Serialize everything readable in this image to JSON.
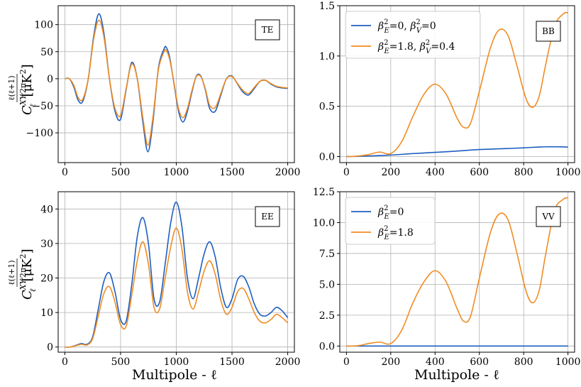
{
  "colors": {
    "series_a": "#1f5fbf",
    "series_b": "#f08c23",
    "grid": "#b0b0b0"
  },
  "ylabel": {
    "frac_num": "ℓ(ℓ+1)",
    "frac_den": "2π",
    "c_symbol": "C",
    "c_super": "XY",
    "c_sub": "ℓ",
    "units": "[μK",
    "units_sq": "2",
    "units_close": "]"
  },
  "xlabel": "Multipole - ℓ",
  "chart_data": [
    {
      "id": "TE",
      "type": "line",
      "tag": "TE",
      "xlim": [
        -60,
        2060
      ],
      "ylim": [
        -155,
        135
      ],
      "xticks": [
        0,
        500,
        1000,
        1500,
        2000
      ],
      "yticks": [
        100,
        50,
        0,
        -50,
        -100
      ],
      "ytick_labels": [
        "100",
        "50",
        "0",
        "−50",
        "−100"
      ],
      "grid": true,
      "series": [
        {
          "name": "blue",
          "x": [
            0,
            40,
            80,
            120,
            160,
            210,
            260,
            305,
            350,
            400,
            450,
            500,
            550,
            600,
            650,
            700,
            745,
            790,
            840,
            890,
            910,
            940,
            980,
            1020,
            1060,
            1100,
            1140,
            1180,
            1220,
            1260,
            1300,
            1350,
            1400,
            1450,
            1500,
            1550,
            1600,
            1650,
            1700,
            1750,
            1800,
            1850,
            1900,
            1950,
            2000
          ],
          "y": [
            0,
            0,
            -15,
            -40,
            -42,
            0,
            80,
            120,
            85,
            0,
            -60,
            -75,
            -20,
            30,
            0,
            -80,
            -135,
            -80,
            20,
            55,
            58,
            40,
            -10,
            -60,
            -80,
            -60,
            -25,
            5,
            5,
            -20,
            -55,
            -60,
            -30,
            0,
            5,
            -10,
            -25,
            -30,
            -18,
            -5,
            -3,
            -10,
            -15,
            -17,
            -18
          ]
        },
        {
          "name": "orange",
          "x": [
            0,
            40,
            80,
            120,
            160,
            210,
            260,
            305,
            350,
            400,
            450,
            500,
            550,
            600,
            650,
            700,
            745,
            790,
            840,
            890,
            910,
            940,
            980,
            1020,
            1060,
            1100,
            1140,
            1180,
            1220,
            1260,
            1300,
            1350,
            1400,
            1450,
            1500,
            1550,
            1600,
            1650,
            1700,
            1750,
            1800,
            1850,
            1900,
            1950,
            2000
          ],
          "y": [
            0,
            0,
            -12,
            -35,
            -38,
            0,
            75,
            108,
            78,
            0,
            -55,
            -68,
            -18,
            27,
            0,
            -72,
            -123,
            -72,
            17,
            50,
            52,
            36,
            -8,
            -55,
            -72,
            -55,
            -22,
            4,
            4,
            -18,
            -49,
            -53,
            -27,
            0,
            4,
            -9,
            -22,
            -27,
            -16,
            -5,
            -3,
            -9,
            -14,
            -16,
            -17
          ]
        }
      ]
    },
    {
      "id": "BB",
      "type": "line",
      "tag": "BB",
      "xlim": [
        -30,
        1030
      ],
      "ylim": [
        -0.06,
        1.5
      ],
      "xticks": [
        0,
        200,
        400,
        600,
        800,
        1000
      ],
      "yticks": [
        0.0,
        0.5,
        1.0,
        1.5
      ],
      "ytick_labels": [
        "0.0",
        "0.5",
        "1.0",
        "1.5"
      ],
      "grid": true,
      "legend": {
        "placement": "top-left",
        "entries": [
          {
            "series": 0,
            "label_main": "β",
            "sub": "E",
            "sup": "2",
            "rest": "=0, ",
            "label2": "β",
            "sub2": "V",
            "sup2": "2",
            "rest2": "=0"
          },
          {
            "series": 1,
            "label_main": "β",
            "sub": "E",
            "sup": "2",
            "rest": "=1.8, ",
            "label2": "β",
            "sub2": "V",
            "sup2": "2",
            "rest2": "=0.4"
          }
        ]
      },
      "series": [
        {
          "name": "blue",
          "x": [
            0,
            50,
            100,
            150,
            200,
            250,
            300,
            350,
            400,
            450,
            500,
            550,
            600,
            650,
            700,
            750,
            800,
            850,
            900,
            950,
            1000
          ],
          "y": [
            0,
            0.002,
            0.006,
            0.01,
            0.015,
            0.022,
            0.03,
            0.036,
            0.042,
            0.048,
            0.055,
            0.063,
            0.07,
            0.074,
            0.078,
            0.082,
            0.087,
            0.093,
            0.097,
            0.097,
            0.095
          ]
        },
        {
          "name": "orange",
          "x": [
            0,
            50,
            100,
            150,
            200,
            250,
            300,
            350,
            400,
            450,
            500,
            530,
            560,
            600,
            650,
            690,
            730,
            770,
            810,
            840,
            870,
            900,
            940,
            980,
            1000
          ],
          "y": [
            0,
            0.005,
            0.02,
            0.045,
            0.03,
            0.15,
            0.4,
            0.62,
            0.72,
            0.62,
            0.38,
            0.29,
            0.33,
            0.65,
            1.08,
            1.26,
            1.2,
            0.9,
            0.58,
            0.49,
            0.6,
            0.92,
            1.3,
            1.42,
            1.43
          ]
        }
      ]
    },
    {
      "id": "EE",
      "type": "line",
      "tag": "EE",
      "xlim": [
        -60,
        2060
      ],
      "ylim": [
        -1.5,
        45
      ],
      "xticks": [
        0,
        500,
        1000,
        1500,
        2000
      ],
      "yticks": [
        0,
        10,
        20,
        30,
        40
      ],
      "ytick_labels": [
        "0",
        "10",
        "20",
        "30",
        "40"
      ],
      "grid": true,
      "series": [
        {
          "name": "blue",
          "x": [
            0,
            50,
            100,
            150,
            200,
            250,
            300,
            350,
            400,
            450,
            500,
            550,
            600,
            650,
            700,
            750,
            800,
            850,
            900,
            950,
            1000,
            1050,
            1100,
            1150,
            1200,
            1250,
            1300,
            1350,
            1400,
            1450,
            1500,
            1550,
            1600,
            1650,
            1700,
            1750,
            1800,
            1850,
            1900,
            1950,
            2000
          ],
          "y": [
            0,
            0,
            0.5,
            1,
            0.8,
            3,
            11,
            19,
            21.5,
            16,
            8,
            7.5,
            18,
            32,
            37.5,
            30,
            14,
            13,
            24,
            36,
            42,
            35,
            20,
            14,
            20,
            27,
            30.5,
            26,
            17,
            11.5,
            14,
            19.5,
            20.5,
            17.5,
            12.5,
            9.5,
            9,
            10,
            11.5,
            10.5,
            8.5
          ]
        },
        {
          "name": "orange",
          "x": [
            0,
            50,
            100,
            150,
            200,
            250,
            300,
            350,
            400,
            450,
            500,
            550,
            600,
            650,
            700,
            750,
            800,
            850,
            900,
            950,
            1000,
            1050,
            1100,
            1150,
            1200,
            1250,
            1300,
            1350,
            1400,
            1450,
            1500,
            1550,
            1600,
            1650,
            1700,
            1750,
            1800,
            1850,
            1900,
            1950,
            2000
          ],
          "y": [
            0,
            0,
            0.4,
            0.8,
            0.6,
            2.5,
            9,
            15.5,
            17.5,
            13,
            6.5,
            6,
            15,
            25,
            30.5,
            24,
            11.5,
            11,
            20,
            29,
            34.5,
            28.5,
            16,
            11,
            16,
            22,
            25,
            21,
            13.5,
            9.5,
            11.5,
            16,
            17,
            14,
            10,
            7.5,
            7,
            8,
            9.5,
            8.5,
            7
          ]
        }
      ]
    },
    {
      "id": "VV",
      "type": "line",
      "tag": "VV",
      "xlim": [
        -30,
        1030
      ],
      "ylim": [
        -0.5,
        12.5
      ],
      "xticks": [
        0,
        200,
        400,
        600,
        800,
        1000
      ],
      "yticks": [
        0.0,
        2.5,
        5.0,
        7.5,
        10.0,
        12.5
      ],
      "ytick_labels": [
        "0.0",
        "2.5",
        "5.0",
        "7.5",
        "10.0",
        "12.5"
      ],
      "grid": true,
      "legend": {
        "placement": "top-left",
        "entries": [
          {
            "series": 0,
            "label_main": "β",
            "sub": "E",
            "sup": "2",
            "rest": "=0"
          },
          {
            "series": 1,
            "label_main": "β",
            "sub": "E",
            "sup": "2",
            "rest": "=1.8"
          }
        ]
      },
      "series": [
        {
          "name": "blue",
          "x": [
            0,
            1000
          ],
          "y": [
            0,
            0
          ]
        },
        {
          "name": "orange",
          "x": [
            0,
            50,
            100,
            150,
            200,
            250,
            300,
            350,
            400,
            450,
            500,
            530,
            560,
            600,
            650,
            690,
            730,
            770,
            810,
            840,
            870,
            900,
            940,
            980,
            1000
          ],
          "y": [
            0,
            0.02,
            0.2,
            0.32,
            0.2,
            1.3,
            3.5,
            5.2,
            6.1,
            5.2,
            3.0,
            2.0,
            2.4,
            5.5,
            9.2,
            10.7,
            10.2,
            7.5,
            4.5,
            3.5,
            4.5,
            7.5,
            11,
            11.9,
            12.0
          ]
        }
      ]
    }
  ]
}
